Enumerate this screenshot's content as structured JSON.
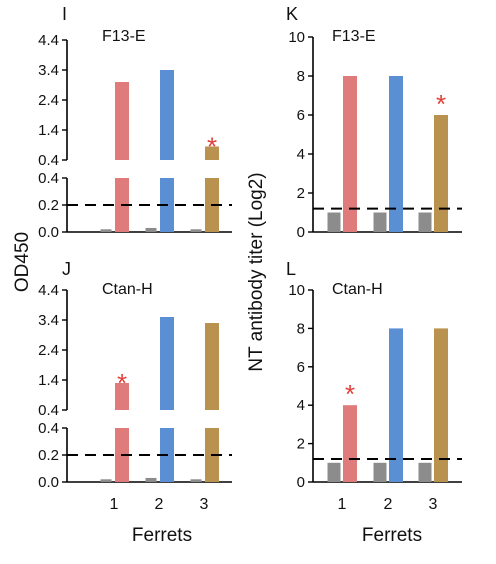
{
  "figure": {
    "left_ylabel": "OD450",
    "right_ylabel": "NT antibody titer (Log2)",
    "xlabel": "Ferrets"
  },
  "colors": {
    "control": "#8c8c8c",
    "ferret1": "#e07b7b",
    "ferret2": "#5b8fd4",
    "ferret3": "#b8924e",
    "star": "#e0403a",
    "axis": "#000000"
  },
  "chart_data": [
    {
      "panel": "I",
      "type": "bar",
      "subtitle": "F13-E",
      "ylabel": "OD450",
      "categories": [
        "1",
        "2",
        "3"
      ],
      "series": [
        {
          "values": [
            0.02,
            0.03,
            0.02
          ]
        },
        {
          "values": [
            3.0,
            3.4,
            0.85
          ]
        }
      ],
      "upper_ticks": [
        "4.4",
        "3.4",
        "2.4",
        "1.4",
        "0.4"
      ],
      "lower_ticks": [
        "0.4",
        "0.2",
        "0.0"
      ],
      "upper_range": [
        0.4,
        4.4
      ],
      "lower_range": [
        0.0,
        0.4
      ],
      "cutoff": 0.2,
      "significant": [
        3
      ],
      "star": "*"
    },
    {
      "panel": "J",
      "type": "bar",
      "subtitle": "Ctan-H",
      "ylabel": "OD450",
      "xlabel": "Ferrets",
      "categories": [
        "1",
        "2",
        "3"
      ],
      "series": [
        {
          "values": [
            0.02,
            0.03,
            0.02
          ]
        },
        {
          "values": [
            1.3,
            3.5,
            3.3
          ]
        }
      ],
      "upper_ticks": [
        "4.4",
        "3.4",
        "2.4",
        "1.4",
        "0.4"
      ],
      "lower_ticks": [
        "0.4",
        "0.2",
        "0.0"
      ],
      "upper_range": [
        0.4,
        4.4
      ],
      "lower_range": [
        0.0,
        0.4
      ],
      "cutoff": 0.2,
      "significant": [
        1
      ],
      "star": "*"
    },
    {
      "panel": "K",
      "type": "bar",
      "subtitle": "F13-E",
      "ylabel": "NT antibody titer (Log2)",
      "categories": [
        "1",
        "2",
        "3"
      ],
      "series": [
        {
          "values": [
            1,
            1,
            1
          ]
        },
        {
          "values": [
            8,
            8,
            6
          ]
        }
      ],
      "ticks": [
        "10",
        "8",
        "6",
        "4",
        "2",
        "0"
      ],
      "ylim": [
        0,
        10
      ],
      "cutoff": 1.2,
      "significant": [
        3
      ],
      "star": "*"
    },
    {
      "panel": "L",
      "type": "bar",
      "subtitle": "Ctan-H",
      "ylabel": "NT antibody titer (Log2)",
      "xlabel": "Ferrets",
      "categories": [
        "1",
        "2",
        "3"
      ],
      "series": [
        {
          "values": [
            1,
            1,
            1
          ]
        },
        {
          "values": [
            4,
            8,
            8
          ]
        }
      ],
      "ticks": [
        "10",
        "8",
        "6",
        "4",
        "2",
        "0"
      ],
      "ylim": [
        0,
        10
      ],
      "cutoff": 1.2,
      "significant": [
        1
      ],
      "star": "*"
    }
  ]
}
